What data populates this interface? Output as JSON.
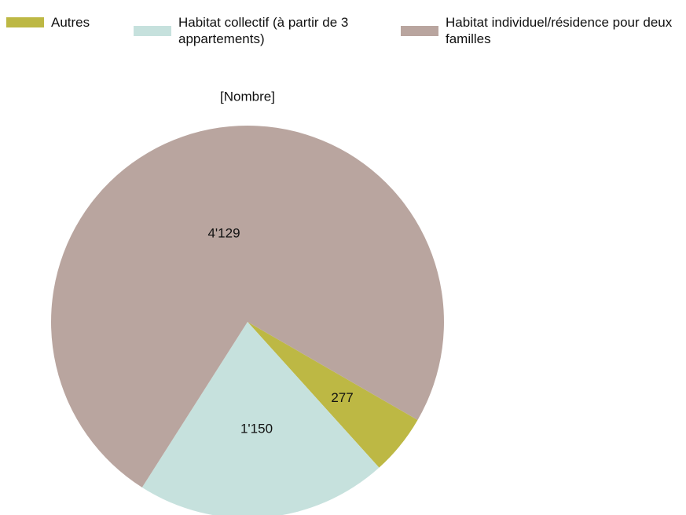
{
  "chart_data": {
    "type": "pie",
    "title": "[Nombre]",
    "categories": [
      "Autres",
      "Habitat collectif (à partir de 3 appartements)",
      "Habitat individuel/résidence pour deux familles"
    ],
    "values": [
      277,
      1150,
      4129
    ],
    "value_labels": [
      "277",
      "1'150",
      "4'129"
    ],
    "colors": [
      "#bdb844",
      "#c6e1dd",
      "#b9a59f"
    ]
  }
}
